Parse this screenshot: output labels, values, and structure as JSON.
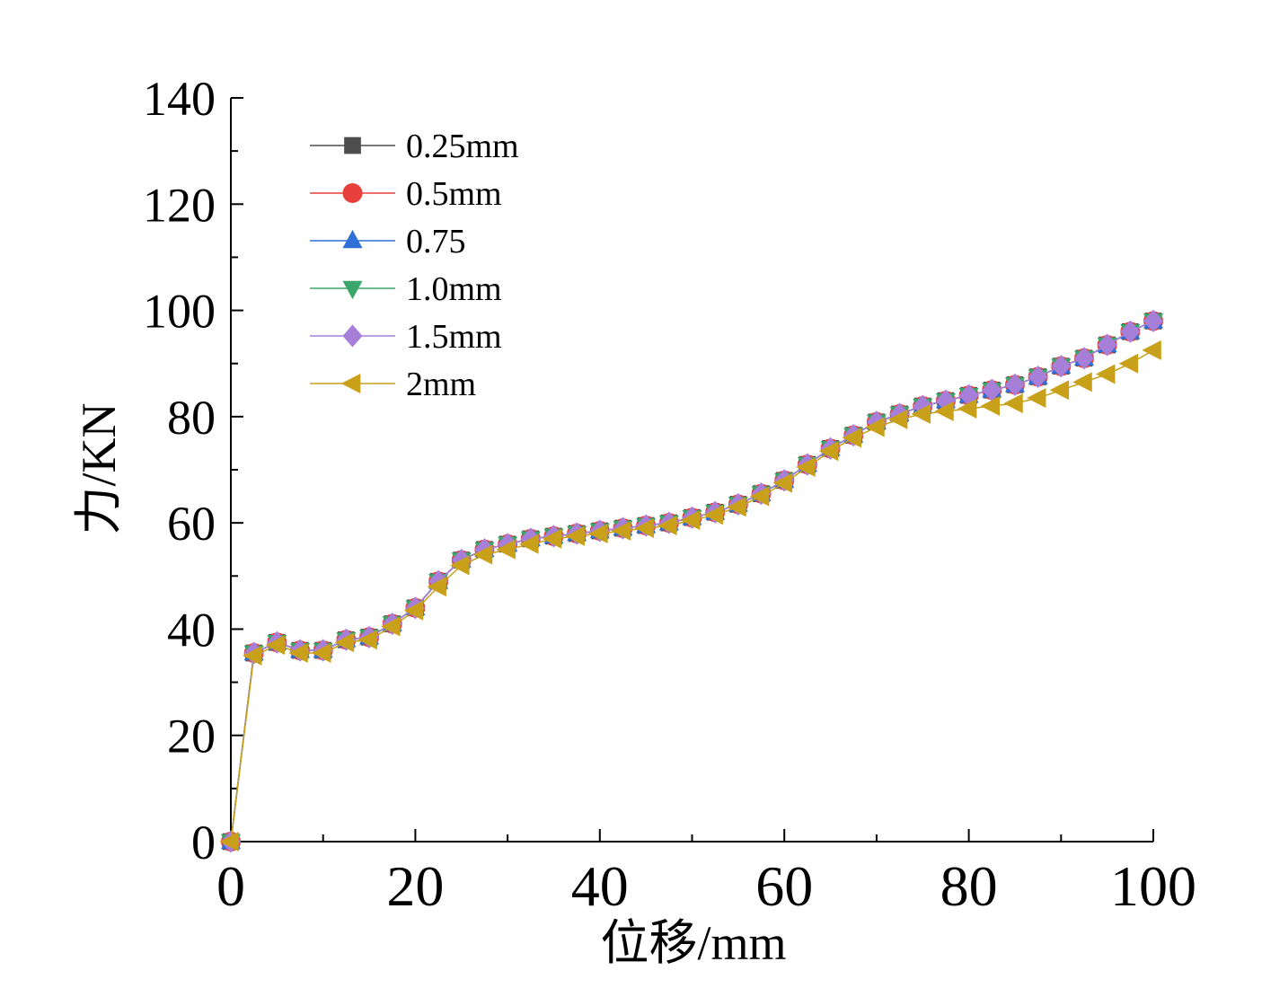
{
  "chart_data": {
    "type": "line",
    "title": "",
    "xlabel": "位移/mm",
    "ylabel": "力/KN",
    "xlim": [
      0,
      100
    ],
    "ylim": [
      0,
      140
    ],
    "xticks": [
      0,
      20,
      40,
      60,
      80,
      100
    ],
    "yticks": [
      0,
      20,
      40,
      60,
      80,
      100,
      120,
      140
    ],
    "grid": false,
    "legend_position": "top-left",
    "x": [
      0,
      2.5,
      5,
      7.5,
      10,
      12.5,
      15,
      17.5,
      20,
      22.5,
      25,
      27.5,
      30,
      32.5,
      35,
      37.5,
      40,
      42.5,
      45,
      47.5,
      50,
      52.5,
      55,
      57.5,
      60,
      62.5,
      65,
      67.5,
      70,
      72.5,
      75,
      77.5,
      80,
      82.5,
      85,
      87.5,
      90,
      92.5,
      95,
      97.5,
      100
    ],
    "series": [
      {
        "name": "0.25mm",
        "color": "#4d4d4d",
        "marker": "square",
        "values": [
          0,
          35.5,
          37.5,
          36,
          36,
          38,
          38.5,
          41,
          44,
          49,
          53,
          55,
          56,
          57,
          57.5,
          58,
          58.5,
          59,
          59.5,
          60,
          61,
          62,
          63.5,
          65.5,
          68,
          71,
          74,
          76.5,
          79,
          80.5,
          82,
          83,
          84,
          85,
          86,
          87.5,
          89.5,
          91,
          93.5,
          96,
          98
        ]
      },
      {
        "name": "0.5mm",
        "color": "#e8403d",
        "marker": "circle",
        "values": [
          0,
          35.5,
          37.5,
          36,
          36,
          38,
          38.5,
          41,
          44,
          49,
          53,
          55,
          56,
          57,
          57.5,
          58,
          58.5,
          59,
          59.5,
          60,
          61,
          62,
          63.5,
          65.5,
          68,
          71,
          74,
          76.5,
          79,
          80.5,
          82,
          83,
          84,
          85,
          86,
          87.5,
          89.5,
          91,
          93.5,
          96,
          98
        ]
      },
      {
        "name": "0.75",
        "color": "#2f6fd8",
        "marker": "triangle-up",
        "values": [
          0,
          35.5,
          37.5,
          36,
          36,
          38,
          38.5,
          41,
          44,
          49,
          53,
          55,
          56,
          57,
          57.5,
          58,
          58.5,
          59,
          59.5,
          60,
          61,
          62,
          63.5,
          65.5,
          68,
          71,
          74,
          76.5,
          79,
          80.5,
          82,
          83,
          84,
          85,
          86,
          87.5,
          89.5,
          91,
          93.5,
          96,
          98
        ]
      },
      {
        "name": "1.0mm",
        "color": "#3aa66a",
        "marker": "triangle-down",
        "values": [
          0,
          35.5,
          37.5,
          36,
          36,
          38,
          38.5,
          41,
          44,
          49,
          53,
          55,
          56,
          57,
          57.5,
          58,
          58.5,
          59,
          59.5,
          60,
          61,
          62,
          63.5,
          65.5,
          68,
          71,
          74,
          76.5,
          79,
          80.5,
          82,
          83,
          84,
          85,
          86,
          87.5,
          89.5,
          91,
          93.5,
          96,
          98
        ]
      },
      {
        "name": "1.5mm",
        "color": "#a77fd9",
        "marker": "diamond",
        "values": [
          0,
          35.5,
          37.5,
          36,
          36,
          38,
          38.5,
          41,
          44,
          49,
          53,
          55,
          56,
          57,
          57.5,
          58,
          58.5,
          59,
          59.5,
          60,
          61,
          62,
          63.5,
          65.5,
          68,
          71,
          74,
          76.5,
          79,
          80.5,
          82,
          83,
          84,
          85,
          86,
          87.5,
          89.5,
          91,
          93.5,
          96,
          98
        ]
      },
      {
        "name": "2mm",
        "color": "#c9a01a",
        "marker": "triangle-left",
        "values": [
          0,
          35,
          37,
          35.5,
          35.5,
          37.5,
          38,
          40.5,
          43.5,
          48,
          52,
          54,
          55,
          56,
          57,
          57.5,
          58,
          58.5,
          59,
          59.5,
          60.5,
          61.5,
          63,
          65,
          67.5,
          70.5,
          73.5,
          76,
          78,
          79.5,
          80.5,
          81,
          81.5,
          82,
          82.5,
          83.5,
          85,
          86.5,
          88,
          90,
          92.5
        ]
      }
    ]
  }
}
